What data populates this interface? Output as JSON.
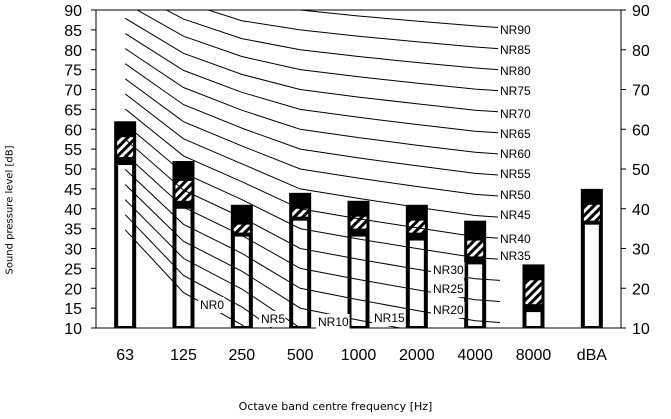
{
  "chart_data": {
    "type": "bar",
    "title": "",
    "xlabel": "Octave band centre frequency [Hz]",
    "ylabel": "Sound pressure level [dB]",
    "ylim": [
      10,
      90
    ],
    "yticks_left": [
      10,
      15,
      20,
      25,
      30,
      35,
      40,
      45,
      50,
      55,
      60,
      65,
      70,
      75,
      80,
      85,
      90
    ],
    "yticks_right": [
      10,
      20,
      30,
      40,
      50,
      60,
      70,
      80,
      90
    ],
    "categories": [
      "63",
      "125",
      "250",
      "500",
      "1000",
      "2000",
      "4000",
      "8000",
      "dBA"
    ],
    "bars": [
      {
        "white_top": 51,
        "hatch_bottom": 53,
        "hatch_top": 58,
        "black_top": 62
      },
      {
        "white_top": 40,
        "hatch_bottom": 42,
        "hatch_top": 47,
        "black_top": 52
      },
      {
        "white_top": 33,
        "hatch_bottom": 34,
        "hatch_top": 36,
        "black_top": 41
      },
      {
        "white_top": 37,
        "hatch_bottom": 38,
        "hatch_top": 40,
        "black_top": 44
      },
      {
        "white_top": 33,
        "hatch_bottom": 35,
        "hatch_top": 38,
        "black_top": 42
      },
      {
        "white_top": 32,
        "hatch_bottom": 34,
        "hatch_top": 37,
        "black_top": 41
      },
      {
        "white_top": 26,
        "hatch_bottom": 28,
        "hatch_top": 32,
        "black_top": 37
      },
      {
        "white_top": 14,
        "hatch_bottom": 16,
        "hatch_top": 22,
        "black_top": 26
      },
      {
        "white_top": 36,
        "hatch_bottom": 37,
        "hatch_top": 41,
        "black_top": 45
      }
    ],
    "curves": [
      {
        "name": "NR90",
        "values": [
          103.1,
          96.3,
          91.8,
          90.0,
          88.5,
          87.2,
          86.0,
          85.0
        ]
      },
      {
        "name": "NR85",
        "values": [
          99.3,
          92.0,
          87.3,
          85.0,
          83.4,
          82.0,
          80.7,
          79.7
        ]
      },
      {
        "name": "NR80",
        "values": [
          95.5,
          87.7,
          82.8,
          80.0,
          78.3,
          76.8,
          75.4,
          74.4
        ]
      },
      {
        "name": "NR75",
        "values": [
          91.7,
          83.4,
          78.3,
          75.0,
          73.2,
          71.6,
          70.1,
          69.1
        ]
      },
      {
        "name": "NR70",
        "values": [
          87.9,
          79.1,
          73.8,
          70.0,
          68.1,
          66.4,
          64.8,
          63.8
        ]
      },
      {
        "name": "NR65",
        "values": [
          84.1,
          74.8,
          69.3,
          65.0,
          63.0,
          61.2,
          59.5,
          58.5
        ]
      },
      {
        "name": "NR60",
        "values": [
          80.3,
          70.5,
          64.8,
          60.0,
          57.9,
          56.0,
          54.2,
          53.2
        ]
      },
      {
        "name": "NR55",
        "values": [
          76.5,
          66.2,
          60.3,
          55.0,
          52.8,
          50.8,
          48.9,
          47.9
        ]
      },
      {
        "name": "NR50",
        "values": [
          72.7,
          61.9,
          55.8,
          50.0,
          47.7,
          45.6,
          43.6,
          42.6
        ]
      },
      {
        "name": "NR45",
        "values": [
          68.9,
          57.6,
          51.3,
          45.0,
          42.6,
          40.4,
          38.3,
          37.3
        ]
      },
      {
        "name": "NR40",
        "values": [
          65.1,
          53.3,
          46.8,
          40.0,
          37.5,
          35.2,
          33.0,
          32.0
        ]
      },
      {
        "name": "NR35",
        "values": [
          61.3,
          49.0,
          42.3,
          35.0,
          32.4,
          30.0,
          27.7,
          26.7
        ]
      },
      {
        "name": "NR30",
        "values": [
          57.5,
          44.7,
          37.8,
          30.0,
          27.3,
          24.8,
          22.4,
          21.4
        ]
      },
      {
        "name": "NR25",
        "values": [
          53.7,
          40.4,
          33.3,
          25.0,
          22.2,
          19.6,
          17.1,
          16.1
        ]
      },
      {
        "name": "NR20",
        "values": [
          49.9,
          36.1,
          28.8,
          20.0,
          17.1,
          14.4,
          11.8,
          10.8
        ]
      },
      {
        "name": "NR15",
        "values": [
          46.1,
          31.8,
          24.3,
          15.0,
          12.0,
          9.2,
          6.5,
          5.5
        ]
      },
      {
        "name": "NR10",
        "values": [
          42.3,
          27.5,
          19.8,
          10.0,
          6.9,
          4.0,
          1.2,
          0.2
        ]
      },
      {
        "name": "NR5",
        "values": [
          38.5,
          23.2,
          15.3,
          5.0,
          1.8,
          -1.2,
          -4.1,
          -5.1
        ]
      },
      {
        "name": "NR0",
        "values": [
          34.7,
          18.9,
          10.8,
          0.0,
          -3.3,
          -6.4,
          -9.4,
          -10.4
        ]
      }
    ]
  }
}
